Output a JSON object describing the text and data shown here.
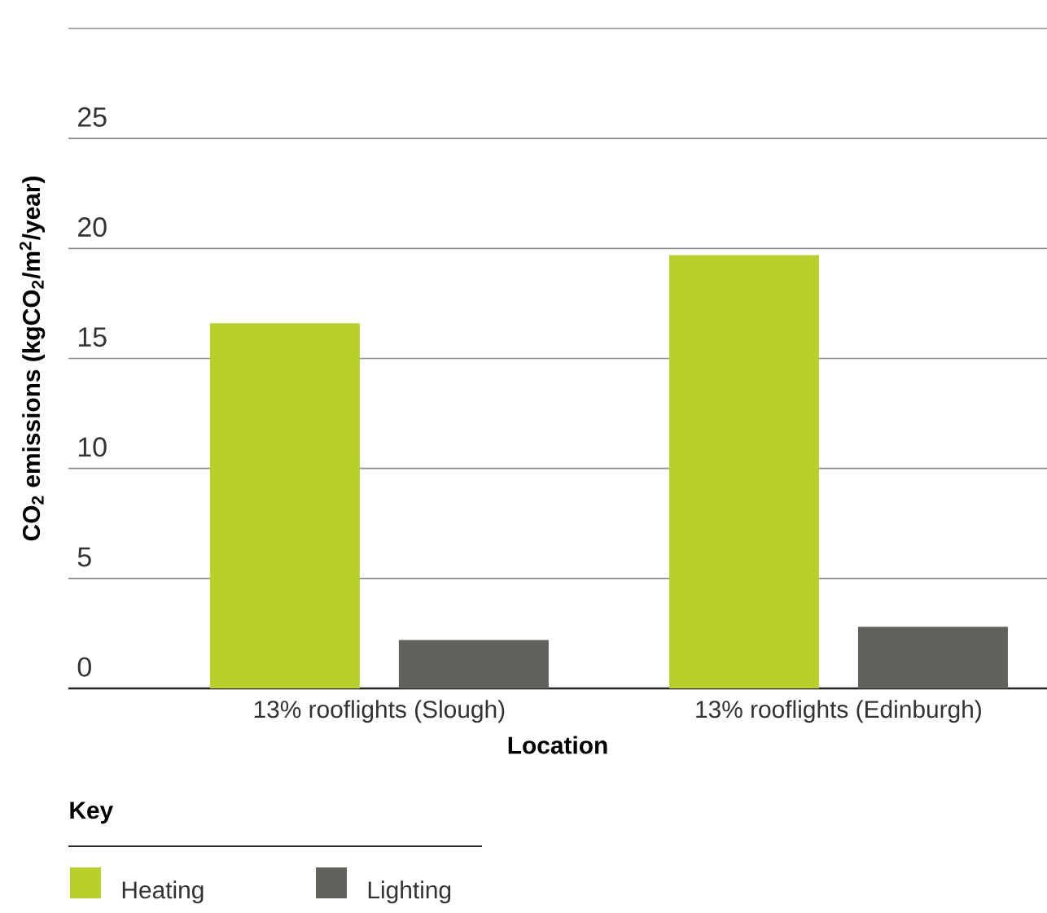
{
  "chart_data": {
    "type": "bar",
    "xlabel": "Location",
    "ylabel": "CO$_{2}$ emissions (kgCO$_{2}$/m$^{2}$/year)",
    "legend_title": "Key",
    "categories": [
      "13% rooflights (Slough)",
      "13% rooflights (Edinburgh)"
    ],
    "series": [
      {
        "name": "Heating",
        "color": "#b9cf2b",
        "values": [
          16.6,
          19.7
        ]
      },
      {
        "name": "Lighting",
        "color": "#62625c",
        "values": [
          2.2,
          2.8
        ]
      }
    ],
    "ylim": [
      0,
      30
    ],
    "yticks": [
      0,
      5,
      10,
      15,
      20,
      25,
      {
        "value": 30,
        "label": null
      }
    ],
    "grid": "y",
    "legend": "bottom left"
  }
}
